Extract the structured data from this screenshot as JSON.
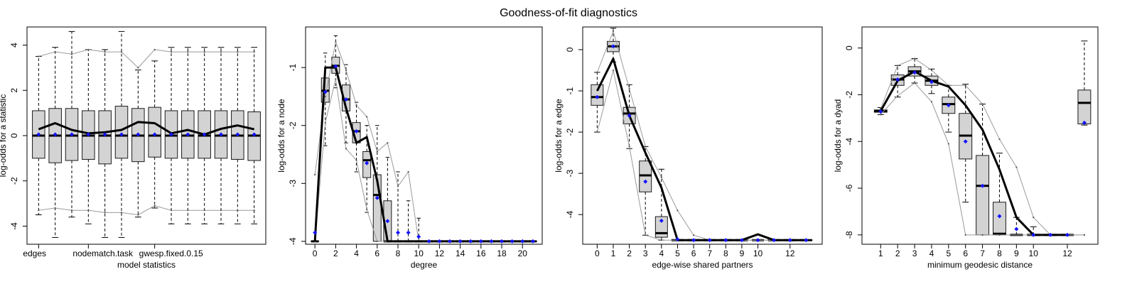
{
  "page": {
    "title": "Goodness-of-fit diagnostics"
  },
  "colors": {
    "observed": "#000000",
    "bounds": "#9a9a9a",
    "box_fill": "#d3d3d3",
    "box_border": "#1a1a1a",
    "sim_mean": "#1414ff"
  },
  "chart_data": [
    {
      "type": "boxplot",
      "title": "",
      "xlabel": "model statistics",
      "ylabel": "log-odds for a statistic",
      "ylim": [
        -4.8,
        4.8
      ],
      "yticks": [
        -4,
        -2,
        0,
        2,
        4
      ],
      "xtick_labels": [
        {
          "x": 1,
          "label": "edges"
        },
        {
          "x": 4,
          "label": "nodematch.task"
        },
        {
          "x": 8,
          "label": "gwesp.fixed.0.15"
        }
      ],
      "x": [
        1,
        2,
        3,
        4,
        5,
        6,
        7,
        8,
        9,
        10,
        11,
        12,
        13,
        14
      ],
      "boxes": [
        {
          "wlo": -3.5,
          "q1": -1.0,
          "med": 0.0,
          "q3": 1.1,
          "whi": 3.5
        },
        {
          "wlo": -4.5,
          "q1": -1.2,
          "med": 0.0,
          "q3": 1.2,
          "whi": 3.9
        },
        {
          "wlo": -3.6,
          "q1": -1.1,
          "med": 0.0,
          "q3": 1.2,
          "whi": 4.6
        },
        {
          "wlo": -3.9,
          "q1": -1.05,
          "med": 0.0,
          "q3": 1.1,
          "whi": 3.8
        },
        {
          "wlo": -4.5,
          "q1": -1.25,
          "med": 0.0,
          "q3": 1.1,
          "whi": 3.8
        },
        {
          "wlo": -4.5,
          "q1": -1.0,
          "med": 0.0,
          "q3": 1.3,
          "whi": 4.6
        },
        {
          "wlo": -3.6,
          "q1": -1.15,
          "med": 0.0,
          "q3": 1.2,
          "whi": 2.9
        },
        {
          "wlo": -3.2,
          "q1": -0.95,
          "med": 0.0,
          "q3": 1.25,
          "whi": 3.3
        },
        {
          "wlo": -3.9,
          "q1": -1.0,
          "med": 0.0,
          "q3": 1.1,
          "whi": 3.9
        },
        {
          "wlo": -3.9,
          "q1": -1.0,
          "med": 0.0,
          "q3": 1.1,
          "whi": 3.9
        },
        {
          "wlo": -3.9,
          "q1": -1.0,
          "med": 0.0,
          "q3": 1.1,
          "whi": 3.9
        },
        {
          "wlo": -3.9,
          "q1": -1.0,
          "med": 0.0,
          "q3": 1.1,
          "whi": 3.9
        },
        {
          "wlo": -3.9,
          "q1": -1.05,
          "med": 0.0,
          "q3": 1.1,
          "whi": 3.9
        },
        {
          "wlo": -3.9,
          "q1": -1.1,
          "med": 0.0,
          "q3": 1.05,
          "whi": 3.9
        }
      ],
      "observed": [
        0.28,
        0.55,
        0.25,
        0.1,
        0.15,
        0.25,
        0.6,
        0.55,
        0.1,
        0.25,
        0.05,
        0.3,
        0.45,
        0.28
      ],
      "sim_mean": [
        0.05,
        0.05,
        0.05,
        0.05,
        0.05,
        0.05,
        0.05,
        0.05,
        0.05,
        0.05,
        0.05,
        0.05,
        0.05,
        0.05
      ],
      "upper_bound": [
        3.5,
        3.7,
        3.6,
        3.8,
        3.7,
        3.7,
        3.0,
        3.8,
        3.7,
        3.7,
        3.7,
        3.7,
        3.7,
        3.7
      ],
      "lower_bound": [
        -3.3,
        -3.2,
        -3.3,
        -3.3,
        -3.4,
        -3.4,
        -3.5,
        -3.1,
        -3.3,
        -3.3,
        -3.3,
        -3.3,
        -3.3,
        -3.3
      ]
    },
    {
      "type": "boxplot",
      "title": "",
      "xlabel": "degree",
      "ylabel": "log-odds for a node",
      "ylim": [
        -4.05,
        -0.3
      ],
      "yticks": [
        -4,
        -3,
        -2,
        -1
      ],
      "xtick_labels": [
        {
          "x": 0,
          "label": "0"
        },
        {
          "x": 2,
          "label": "2"
        },
        {
          "x": 4,
          "label": "4"
        },
        {
          "x": 6,
          "label": "6"
        },
        {
          "x": 8,
          "label": "8"
        },
        {
          "x": 10,
          "label": "10"
        },
        {
          "x": 12,
          "label": "12"
        },
        {
          "x": 14,
          "label": "14"
        },
        {
          "x": 16,
          "label": "16"
        },
        {
          "x": 18,
          "label": "18"
        },
        {
          "x": 20,
          "label": "20"
        }
      ],
      "x": [
        0,
        1,
        2,
        3,
        4,
        5,
        6,
        7,
        8,
        9,
        10,
        11,
        12,
        13,
        14,
        15,
        16,
        17,
        18,
        19,
        20,
        21
      ],
      "boxes": [
        {
          "wlo": -4.0,
          "q1": -4.0,
          "med": -4.0,
          "q3": -4.0,
          "whi": -4.0
        },
        {
          "wlo": -2.35,
          "q1": -1.6,
          "med": -1.4,
          "q3": -1.18,
          "whi": -0.75
        },
        {
          "wlo": -1.35,
          "q1": -1.1,
          "med": -0.97,
          "q3": -0.82,
          "whi": -0.45
        },
        {
          "wlo": -2.3,
          "q1": -1.75,
          "med": -1.55,
          "q3": -1.3,
          "whi": -0.95
        },
        {
          "wlo": -2.8,
          "q1": -2.3,
          "med": -2.1,
          "q3": -1.95,
          "whi": -1.6
        },
        {
          "wlo": -3.5,
          "q1": -2.9,
          "med": -2.6,
          "q3": -2.45,
          "whi": -2.0
        },
        {
          "wlo": -4.0,
          "q1": -4.0,
          "med": -3.2,
          "q3": -2.85,
          "whi": -2.0
        },
        {
          "wlo": -4.0,
          "q1": -4.0,
          "med": -4.0,
          "q3": -3.3,
          "whi": -2.55
        },
        {
          "wlo": -4.0,
          "q1": -4.0,
          "med": -4.0,
          "q3": -4.0,
          "whi": -2.8
        },
        {
          "wlo": -4.0,
          "q1": -4.0,
          "med": -4.0,
          "q3": -4.0,
          "whi": -3.3
        },
        {
          "wlo": -4.0,
          "q1": -4.0,
          "med": -4.0,
          "q3": -4.0,
          "whi": -3.6
        },
        {
          "wlo": -4.0,
          "q1": -4.0,
          "med": -4.0,
          "q3": -4.0,
          "whi": -4.0
        },
        {
          "wlo": -4.0,
          "q1": -4.0,
          "med": -4.0,
          "q3": -4.0,
          "whi": -4.0
        },
        {
          "wlo": -4.0,
          "q1": -4.0,
          "med": -4.0,
          "q3": -4.0,
          "whi": -4.0
        },
        {
          "wlo": -4.0,
          "q1": -4.0,
          "med": -4.0,
          "q3": -4.0,
          "whi": -4.0
        },
        {
          "wlo": -4.0,
          "q1": -4.0,
          "med": -4.0,
          "q3": -4.0,
          "whi": -4.0
        },
        {
          "wlo": -4.0,
          "q1": -4.0,
          "med": -4.0,
          "q3": -4.0,
          "whi": -4.0
        },
        {
          "wlo": -4.0,
          "q1": -4.0,
          "med": -4.0,
          "q3": -4.0,
          "whi": -4.0
        },
        {
          "wlo": -4.0,
          "q1": -4.0,
          "med": -4.0,
          "q3": -4.0,
          "whi": -4.0
        },
        {
          "wlo": -4.0,
          "q1": -4.0,
          "med": -4.0,
          "q3": -4.0,
          "whi": -4.0
        },
        {
          "wlo": -4.0,
          "q1": -4.0,
          "med": -4.0,
          "q3": -4.0,
          "whi": -4.0
        },
        {
          "wlo": -4.0,
          "q1": -4.0,
          "med": -4.0,
          "q3": -4.0,
          "whi": -4.0
        }
      ],
      "observed": [
        -4.0,
        -1.0,
        -1.0,
        -1.7,
        -2.3,
        -2.2,
        -2.95,
        -4.0,
        -4.0,
        -4.0,
        -4.0,
        -4.0,
        -4.0,
        -4.0,
        -4.0,
        -4.0,
        -4.0,
        -4.0,
        -4.0,
        -4.0,
        -4.0,
        -4.0
      ],
      "sim_mean": [
        -3.85,
        -1.42,
        -0.98,
        -1.55,
        -2.1,
        -2.65,
        -3.25,
        -3.65,
        -3.85,
        -3.85,
        -3.92,
        -4.0,
        -4.0,
        -4.0,
        -4.0,
        -4.0,
        -4.0,
        -4.0,
        -4.0,
        -4.0,
        -4.0,
        -4.0
      ],
      "upper_bound": [
        -2.85,
        -1.5,
        -0.55,
        -1.05,
        -1.65,
        -1.85,
        -2.45,
        -2.3,
        -3.05,
        -2.8,
        -4.0,
        -4.0,
        -4.0,
        -4.0,
        -4.0,
        -4.0,
        -4.0,
        -4.0,
        -4.0,
        -4.0,
        -4.0,
        -4.0
      ],
      "lower_bound": [
        -4.0,
        -1.95,
        -1.2,
        -2.4,
        -2.6,
        -3.45,
        -4.0,
        -4.0,
        -4.0,
        -4.0,
        -4.0,
        -4.0,
        -4.0,
        -4.0,
        -4.0,
        -4.0,
        -4.0,
        -4.0,
        -4.0,
        -4.0,
        -4.0,
        -4.0
      ]
    },
    {
      "type": "boxplot",
      "title": "",
      "xlabel": "edge-wise shared partners",
      "ylabel": "log-odds for a edge",
      "ylim": [
        -4.72,
        0.55
      ],
      "yticks": [
        -4,
        -3,
        -2,
        -1,
        0
      ],
      "xtick_labels": [
        {
          "x": 0,
          "label": "0"
        },
        {
          "x": 1,
          "label": "1"
        },
        {
          "x": 2,
          "label": "2"
        },
        {
          "x": 3,
          "label": "3"
        },
        {
          "x": 4,
          "label": "4"
        },
        {
          "x": 5,
          "label": "5"
        },
        {
          "x": 6,
          "label": "6"
        },
        {
          "x": 7,
          "label": "7"
        },
        {
          "x": 8,
          "label": "8"
        },
        {
          "x": 9,
          "label": "9"
        },
        {
          "x": 10,
          "label": "10"
        },
        {
          "x": 12,
          "label": "12"
        }
      ],
      "x": [
        0,
        1,
        2,
        3,
        4,
        5,
        6,
        7,
        8,
        9,
        10,
        11,
        12,
        13
      ],
      "boxes": [
        {
          "wlo": -2.0,
          "q1": -1.35,
          "med": -1.15,
          "q3": -0.85,
          "whi": -0.55
        },
        {
          "wlo": -0.3,
          "q1": -0.05,
          "med": 0.08,
          "q3": 0.2,
          "whi": 0.52
        },
        {
          "wlo": -2.4,
          "q1": -1.8,
          "med": -1.55,
          "q3": -1.4,
          "whi": -0.85
        },
        {
          "wlo": -4.5,
          "q1": -3.45,
          "med": -3.05,
          "q3": -2.7,
          "whi": -2.35
        },
        {
          "wlo": -4.62,
          "q1": -4.55,
          "med": -4.45,
          "q3": -4.05,
          "whi": -2.9
        },
        {
          "wlo": -4.62,
          "q1": -4.62,
          "med": -4.62,
          "q3": -4.62,
          "whi": -4.62
        },
        {
          "wlo": -4.62,
          "q1": -4.62,
          "med": -4.62,
          "q3": -4.62,
          "whi": -4.62
        },
        {
          "wlo": -4.62,
          "q1": -4.62,
          "med": -4.62,
          "q3": -4.62,
          "whi": -4.62
        },
        {
          "wlo": -4.62,
          "q1": -4.62,
          "med": -4.62,
          "q3": -4.62,
          "whi": -4.62
        },
        {
          "wlo": -4.62,
          "q1": -4.62,
          "med": -4.62,
          "q3": -4.62,
          "whi": -4.62
        },
        {
          "wlo": -4.62,
          "q1": -4.62,
          "med": -4.62,
          "q3": -4.62,
          "whi": -4.62
        },
        {
          "wlo": -4.62,
          "q1": -4.62,
          "med": -4.62,
          "q3": -4.62,
          "whi": -4.62
        },
        {
          "wlo": -4.62,
          "q1": -4.62,
          "med": -4.62,
          "q3": -4.62,
          "whi": -4.62
        },
        {
          "wlo": -4.62,
          "q1": -4.62,
          "med": -4.62,
          "q3": -4.62,
          "whi": -4.62
        }
      ],
      "observed": [
        -1.0,
        -0.22,
        -1.6,
        -2.5,
        -3.35,
        -4.62,
        -4.62,
        -4.62,
        -4.62,
        -4.62,
        -4.48,
        -4.62,
        -4.62,
        -4.62
      ],
      "sim_mean": [
        -1.15,
        0.08,
        -1.6,
        -3.2,
        -4.15,
        -4.6,
        -4.62,
        -4.62,
        -4.62,
        -4.62,
        -4.62,
        -4.62,
        -4.62,
        -4.62
      ],
      "upper_bound": [
        -0.55,
        0.45,
        -0.95,
        -2.35,
        -3.1,
        -3.9,
        -4.5,
        -4.62,
        -4.62,
        -4.62,
        -4.62,
        -4.62,
        -4.62,
        -4.62
      ],
      "lower_bound": [
        -2.0,
        -0.5,
        -2.35,
        -4.5,
        -4.62,
        -4.62,
        -4.62,
        -4.62,
        -4.62,
        -4.62,
        -4.62,
        -4.62,
        -4.62,
        -4.62
      ]
    },
    {
      "type": "boxplot",
      "title": "",
      "xlabel": "minimum geodesic distance",
      "ylabel": "log-odds for a dyad",
      "ylim": [
        -8.4,
        0.9
      ],
      "yticks": [
        -8,
        -6,
        -4,
        -2,
        0
      ],
      "xtick_labels": [
        {
          "x": 1,
          "label": "1"
        },
        {
          "x": 2,
          "label": "2"
        },
        {
          "x": 3,
          "label": "3"
        },
        {
          "x": 4,
          "label": "4"
        },
        {
          "x": 5,
          "label": "5"
        },
        {
          "x": 6,
          "label": "6"
        },
        {
          "x": 7,
          "label": "7"
        },
        {
          "x": 8,
          "label": "8"
        },
        {
          "x": 9,
          "label": "9"
        },
        {
          "x": 10,
          "label": "10"
        },
        {
          "x": 12,
          "label": "12"
        }
      ],
      "x": [
        1,
        2,
        3,
        4,
        5,
        6,
        7,
        8,
        9,
        10,
        11,
        12,
        13
      ],
      "boxes": [
        {
          "wlo": -2.85,
          "q1": -2.75,
          "med": -2.7,
          "q3": -2.65,
          "whi": -2.55
        },
        {
          "wlo": -2.1,
          "q1": -1.6,
          "med": -1.35,
          "q3": -1.15,
          "whi": -0.75
        },
        {
          "wlo": -1.5,
          "q1": -1.2,
          "med": -1.0,
          "q3": -0.8,
          "whi": -0.45
        },
        {
          "wlo": -1.95,
          "q1": -1.6,
          "med": -1.4,
          "q3": -1.2,
          "whi": -0.9
        },
        {
          "wlo": -3.6,
          "q1": -2.8,
          "med": -2.4,
          "q3": -2.1,
          "whi": -1.6
        },
        {
          "wlo": -6.6,
          "q1": -4.75,
          "med": -3.75,
          "q3": -2.8,
          "whi": -1.55
        },
        {
          "wlo": -8.0,
          "q1": -8.0,
          "med": -5.9,
          "q3": -4.6,
          "whi": -2.4
        },
        {
          "wlo": -8.0,
          "q1": -8.0,
          "med": -7.95,
          "q3": -6.6,
          "whi": -4.5
        },
        {
          "wlo": -8.0,
          "q1": -8.0,
          "med": -8.0,
          "q3": -8.0,
          "whi": -7.25
        },
        {
          "wlo": -8.0,
          "q1": -8.0,
          "med": -8.0,
          "q3": -8.0,
          "whi": -7.65
        },
        {
          "wlo": -8.0,
          "q1": -8.0,
          "med": -8.0,
          "q3": -8.0,
          "whi": -8.0
        },
        {
          "wlo": -8.0,
          "q1": -8.0,
          "med": -8.0,
          "q3": -8.0,
          "whi": -8.0
        },
        {
          "wlo": -3.3,
          "q1": -3.25,
          "med": -2.35,
          "q3": -1.8,
          "whi": 0.3
        }
      ],
      "observed": [
        -2.7,
        -1.4,
        -1.0,
        -1.4,
        -1.65,
        -2.45,
        -3.5,
        -5.2,
        -7.25,
        -8.0,
        -8.0,
        -8.0,
        null
      ],
      "sim_mean": [
        -2.72,
        -1.35,
        -1.05,
        -1.45,
        -2.45,
        -4.0,
        -5.9,
        -7.2,
        -7.75,
        -8.0,
        -8.0,
        -8.0,
        -3.2
      ],
      "upper_bound": [
        -2.6,
        -0.75,
        -0.45,
        -0.95,
        -1.6,
        -1.6,
        -2.4,
        -3.9,
        -5.1,
        -7.25,
        -8.0,
        -8.0,
        -8.0
      ],
      "lower_bound": [
        -2.85,
        -2.05,
        -1.5,
        -2.3,
        -4.1,
        -8.0,
        -8.0,
        -8.0,
        -8.0,
        -8.0,
        -8.0,
        -8.0,
        -8.0
      ]
    }
  ]
}
